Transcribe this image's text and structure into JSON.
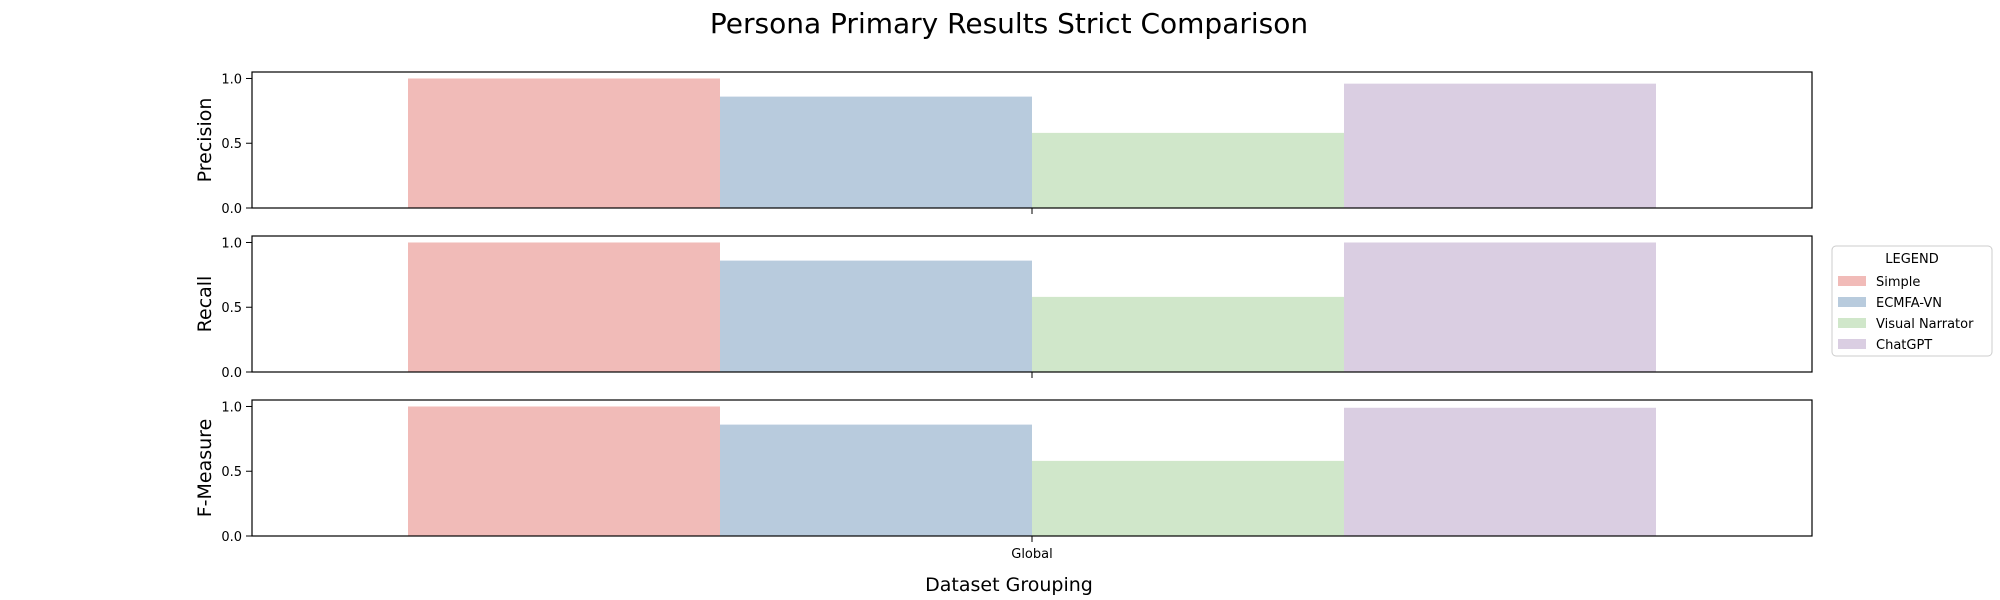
{
  "chart_data": {
    "type": "bar",
    "title": "Persona Primary Results Strict Comparison",
    "xlabel": "Dataset Grouping",
    "categories": [
      "Global"
    ],
    "legend": {
      "title": "LEGEND",
      "placement": "right-center",
      "entries": [
        "Simple",
        "ECMFA-VN",
        "Visual Narrator",
        "ChatGPT"
      ]
    },
    "colors": {
      "Simple": "#f1bbb8",
      "ECMFA-VN": "#b8cbdd",
      "Visual Narrator": "#d0e7ca",
      "ChatGPT": "#dacee2"
    },
    "grid": false,
    "panels": [
      {
        "ylabel": "Precision",
        "ylim": [
          0,
          1.05
        ],
        "yticks": [
          "0.0",
          "0.5",
          "1.0"
        ],
        "series": [
          {
            "name": "Simple",
            "values": [
              1.0
            ]
          },
          {
            "name": "ECMFA-VN",
            "values": [
              0.86
            ]
          },
          {
            "name": "Visual Narrator",
            "values": [
              0.58
            ]
          },
          {
            "name": "ChatGPT",
            "values": [
              0.96
            ]
          }
        ]
      },
      {
        "ylabel": "Recall",
        "ylim": [
          0,
          1.05
        ],
        "yticks": [
          "0.0",
          "0.5",
          "1.0"
        ],
        "series": [
          {
            "name": "Simple",
            "values": [
              1.0
            ]
          },
          {
            "name": "ECMFA-VN",
            "values": [
              0.86
            ]
          },
          {
            "name": "Visual Narrator",
            "values": [
              0.58
            ]
          },
          {
            "name": "ChatGPT",
            "values": [
              1.0
            ]
          }
        ]
      },
      {
        "ylabel": "F-Measure",
        "ylim": [
          0,
          1.05
        ],
        "yticks": [
          "0.0",
          "0.5",
          "1.0"
        ],
        "series": [
          {
            "name": "Simple",
            "values": [
              1.0
            ]
          },
          {
            "name": "ECMFA-VN",
            "values": [
              0.86
            ]
          },
          {
            "name": "Visual Narrator",
            "values": [
              0.58
            ]
          },
          {
            "name": "ChatGPT",
            "values": [
              0.99
            ]
          }
        ]
      }
    ]
  }
}
